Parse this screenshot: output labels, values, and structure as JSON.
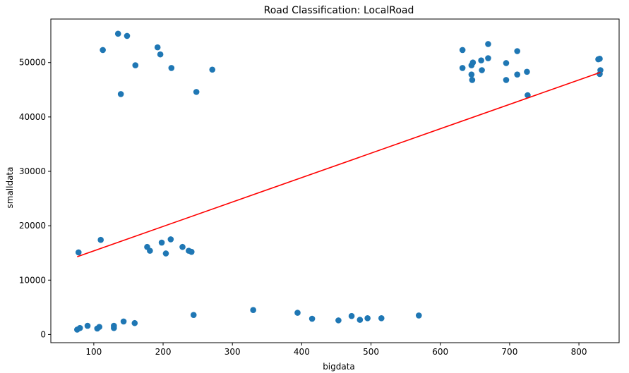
{
  "chart_data": {
    "type": "scatter",
    "title": "Road Classification: LocalRoad",
    "xlabel": "bigdata",
    "ylabel": "smalldata",
    "xlim": [
      38,
      858
    ],
    "ylim": [
      -1500,
      58000
    ],
    "xticks": [
      100,
      200,
      300,
      400,
      500,
      600,
      700,
      800
    ],
    "xtick_labels": [
      "100",
      "200",
      "300",
      "400",
      "500",
      "600",
      "700",
      "800"
    ],
    "yticks": [
      0,
      10000,
      20000,
      30000,
      40000,
      50000
    ],
    "ytick_labels": [
      "0",
      "10000",
      "20000",
      "30000",
      "40000",
      "50000"
    ],
    "grid": false,
    "point_color": "#1f77b4",
    "line_color": "#ff0000",
    "points": [
      {
        "x": 76,
        "y": 900
      },
      {
        "x": 80,
        "y": 1200
      },
      {
        "x": 91,
        "y": 1600
      },
      {
        "x": 105,
        "y": 1100
      },
      {
        "x": 108,
        "y": 1400
      },
      {
        "x": 129,
        "y": 1200
      },
      {
        "x": 129,
        "y": 1600
      },
      {
        "x": 143,
        "y": 2400
      },
      {
        "x": 159,
        "y": 2100
      },
      {
        "x": 244,
        "y": 3600
      },
      {
        "x": 330,
        "y": 4500
      },
      {
        "x": 394,
        "y": 4000
      },
      {
        "x": 415,
        "y": 2900
      },
      {
        "x": 453,
        "y": 2600
      },
      {
        "x": 472,
        "y": 3400
      },
      {
        "x": 484,
        "y": 2700
      },
      {
        "x": 495,
        "y": 3000
      },
      {
        "x": 515,
        "y": 3000
      },
      {
        "x": 569,
        "y": 3500
      },
      {
        "x": 78,
        "y": 15100
      },
      {
        "x": 110,
        "y": 17400
      },
      {
        "x": 177,
        "y": 16100
      },
      {
        "x": 181,
        "y": 15400
      },
      {
        "x": 198,
        "y": 16900
      },
      {
        "x": 204,
        "y": 14900
      },
      {
        "x": 211,
        "y": 17500
      },
      {
        "x": 228,
        "y": 16100
      },
      {
        "x": 237,
        "y": 15400
      },
      {
        "x": 241,
        "y": 15200
      },
      {
        "x": 113,
        "y": 52300
      },
      {
        "x": 135,
        "y": 55300
      },
      {
        "x": 139,
        "y": 44200
      },
      {
        "x": 148,
        "y": 54900
      },
      {
        "x": 160,
        "y": 49500
      },
      {
        "x": 192,
        "y": 52800
      },
      {
        "x": 196,
        "y": 51500
      },
      {
        "x": 212,
        "y": 49000
      },
      {
        "x": 248,
        "y": 44600
      },
      {
        "x": 271,
        "y": 48700
      },
      {
        "x": 632,
        "y": 52300
      },
      {
        "x": 632,
        "y": 49000
      },
      {
        "x": 645,
        "y": 47800
      },
      {
        "x": 645,
        "y": 49500
      },
      {
        "x": 647,
        "y": 50000
      },
      {
        "x": 646,
        "y": 46800
      },
      {
        "x": 659,
        "y": 50400
      },
      {
        "x": 660,
        "y": 48600
      },
      {
        "x": 669,
        "y": 53400
      },
      {
        "x": 669,
        "y": 50800
      },
      {
        "x": 695,
        "y": 49900
      },
      {
        "x": 695,
        "y": 46800
      },
      {
        "x": 711,
        "y": 52100
      },
      {
        "x": 711,
        "y": 47800
      },
      {
        "x": 725,
        "y": 48300
      },
      {
        "x": 726,
        "y": 44000
      },
      {
        "x": 828,
        "y": 50600
      },
      {
        "x": 830,
        "y": 50700
      },
      {
        "x": 830,
        "y": 47900
      },
      {
        "x": 831,
        "y": 48600
      }
    ],
    "fit_line": {
      "x": [
        76,
        831
      ],
      "y": [
        14300,
        48200
      ]
    }
  }
}
